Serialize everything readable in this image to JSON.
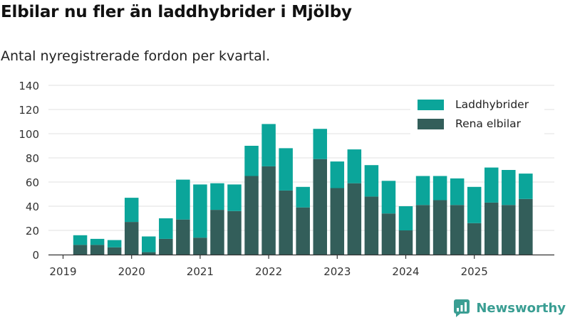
{
  "header": {
    "title": "Elbilar nu fler än laddhybrider i Mjölby",
    "subtitle": "Antal nyregistrerade fordon per kvartal."
  },
  "brand": {
    "name": "Newsworthy",
    "icon": "newsworthy-logo-icon"
  },
  "colors": {
    "laddhybrider": "#0ba59a",
    "rena_elbilar": "#335e5a",
    "grid": "#e6e6e6",
    "axis": "#333333",
    "brand": "#3a9e93"
  },
  "chart_data": {
    "type": "bar",
    "stacked": true,
    "title": "Elbilar nu fler än laddhybrider i Mjölby",
    "subtitle": "Antal nyregistrerade fordon per kvartal.",
    "xlabel": "",
    "ylabel": "",
    "ylim": [
      0,
      140
    ],
    "yticks": [
      0,
      20,
      40,
      60,
      80,
      100,
      120,
      140
    ],
    "xticks": [
      "2019",
      "2020",
      "2021",
      "2022",
      "2023",
      "2024",
      "2025"
    ],
    "legend_position": "top-right",
    "categories": [
      "2019 Q1",
      "2019 Q2",
      "2019 Q3",
      "2019 Q4",
      "2020 Q1",
      "2020 Q2",
      "2020 Q3",
      "2020 Q4",
      "2021 Q1",
      "2021 Q2",
      "2021 Q3",
      "2021 Q4",
      "2022 Q1",
      "2022 Q2",
      "2022 Q3",
      "2022 Q4",
      "2023 Q1",
      "2023 Q2",
      "2023 Q3",
      "2023 Q4",
      "2024 Q1",
      "2024 Q2",
      "2024 Q3",
      "2024 Q4",
      "2025 Q1",
      "2025 Q2",
      "2025 Q3",
      "2025 Q4"
    ],
    "series": [
      {
        "name": "Rena elbilar",
        "values": [
          0,
          8,
          8,
          6,
          27,
          2,
          13,
          29,
          14,
          37,
          36,
          65,
          73,
          53,
          39,
          79,
          55,
          59,
          48,
          34,
          20,
          41,
          45,
          41,
          26,
          43,
          41,
          46
        ]
      },
      {
        "name": "Laddhybrider",
        "values": [
          0,
          8,
          5,
          6,
          20,
          13,
          17,
          33,
          44,
          22,
          22,
          25,
          35,
          35,
          17,
          25,
          22,
          28,
          26,
          27,
          20,
          24,
          20,
          22,
          30,
          29,
          29,
          21
        ]
      }
    ]
  }
}
